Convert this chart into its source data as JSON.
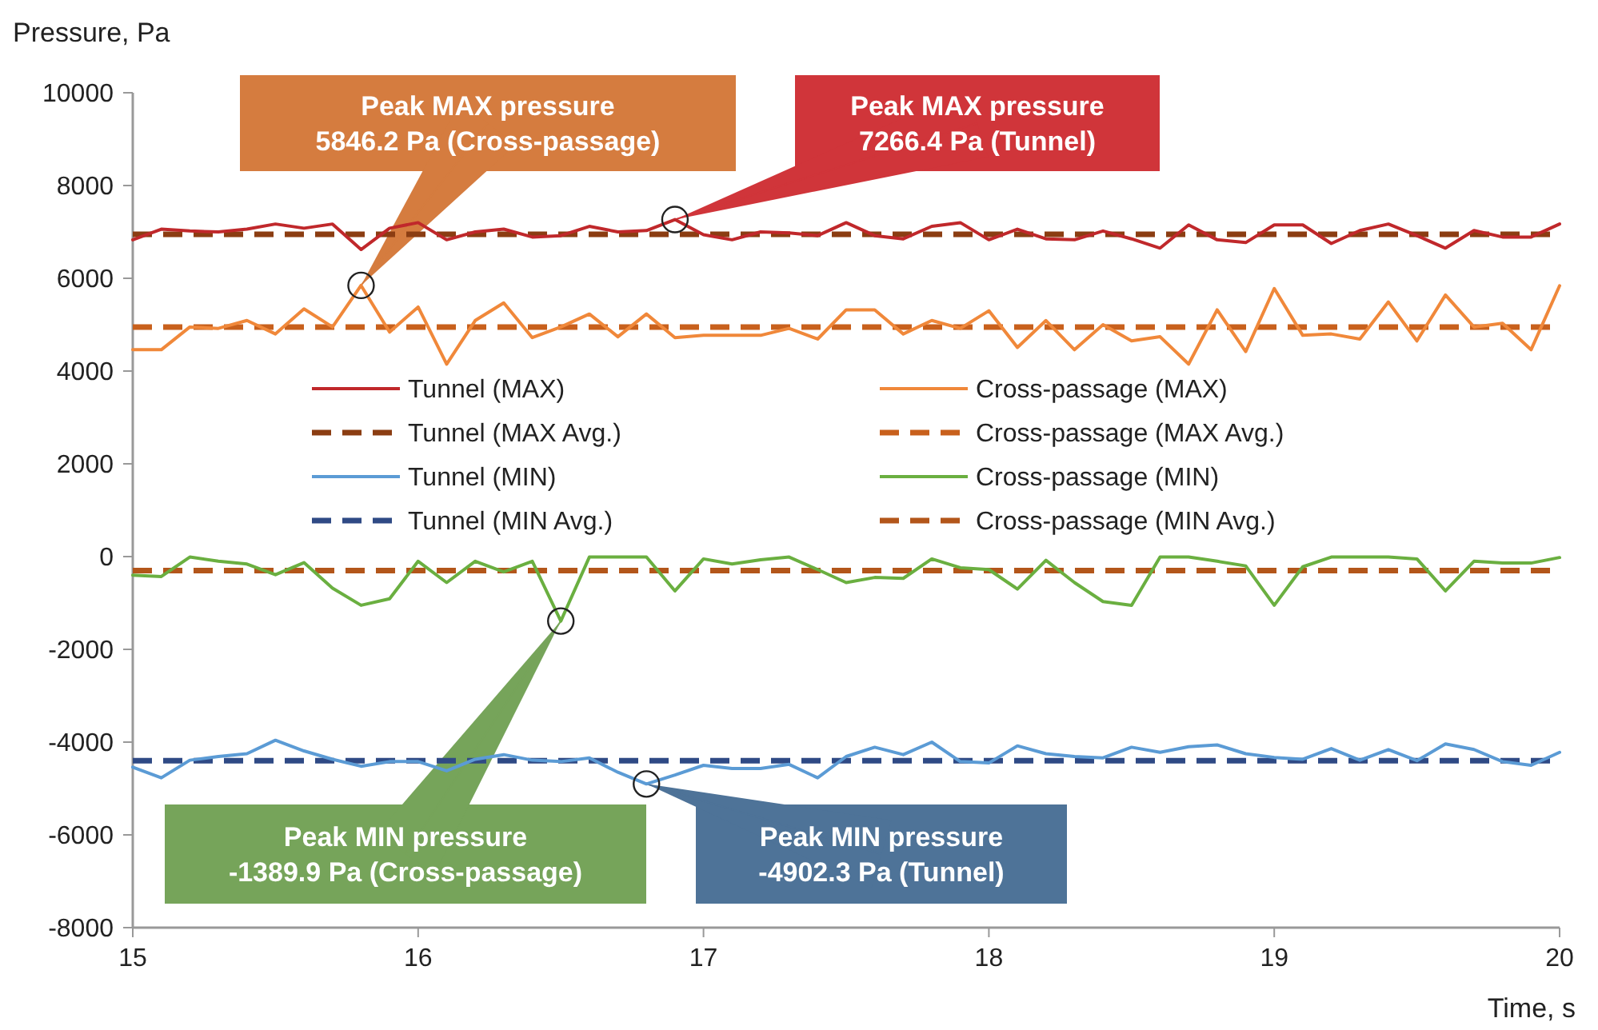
{
  "chart_data": {
    "type": "line",
    "xlabel": "Time, s",
    "ylabel": "Pressure, Pa",
    "x": [
      15,
      15.1,
      15.2,
      15.3,
      15.4,
      15.5,
      15.6,
      15.7,
      15.8,
      15.9,
      16,
      16.1,
      16.2,
      16.3,
      16.4,
      16.5,
      16.6,
      16.7,
      16.8,
      16.9,
      17,
      17.1,
      17.2,
      17.3,
      17.4,
      17.5,
      17.6,
      17.7,
      17.8,
      17.9,
      18,
      18.1,
      18.2,
      18.3,
      18.4,
      18.5,
      18.6,
      18.7,
      18.8,
      18.9,
      19,
      19.1,
      19.2,
      19.3,
      19.4,
      19.5,
      19.6,
      19.7,
      19.8,
      19.9,
      20
    ],
    "xlim": [
      15,
      20
    ],
    "xticks": [
      15,
      16,
      17,
      18,
      19,
      20
    ],
    "ylim": [
      -8000,
      10000
    ],
    "yticks": [
      -8000,
      -6000,
      -4000,
      -2000,
      0,
      2000,
      4000,
      6000,
      8000,
      10000
    ],
    "grid": false,
    "legend": "center",
    "marker": "none",
    "series": [
      {
        "name": "Tunnel (MAX)",
        "color": "#c0282b",
        "values": [
          6830,
          7060,
          7020,
          7000,
          7060,
          7170,
          7080,
          7170,
          6620,
          7080,
          7200,
          6830,
          7000,
          7060,
          6890,
          6920,
          7120,
          7000,
          7030,
          7266.4,
          6940,
          6830,
          7000,
          6980,
          6920,
          7200,
          6920,
          6850,
          7120,
          7200,
          6830,
          7060,
          6850,
          6830,
          7020,
          6850,
          6650,
          7150,
          6830,
          6770,
          7150,
          7150,
          6750,
          7030,
          7170,
          6920,
          6650,
          7030,
          6890,
          6890,
          7170
        ]
      },
      {
        "name": "Cross-passage (MAX)",
        "color": "#f0883a",
        "values": [
          4460,
          4460,
          4950,
          4920,
          5090,
          4800,
          5340,
          4950,
          5846.2,
          4840,
          5380,
          4150,
          5090,
          5470,
          4720,
          4950,
          5230,
          4740,
          5230,
          4720,
          4770,
          4770,
          4770,
          4920,
          4690,
          5320,
          5320,
          4800,
          5090,
          4920,
          5300,
          4510,
          5090,
          4460,
          5000,
          4650,
          4740,
          4150,
          5320,
          4420,
          5780,
          4770,
          4800,
          4690,
          5490,
          4650,
          5640,
          4950,
          5030,
          4460,
          5840
        ]
      },
      {
        "name": "Tunnel (MIN)",
        "color": "#5b9bd5",
        "values": [
          -4540,
          -4770,
          -4390,
          -4310,
          -4250,
          -3960,
          -4190,
          -4370,
          -4520,
          -4420,
          -4420,
          -4620,
          -4370,
          -4270,
          -4390,
          -4420,
          -4340,
          -4650,
          -4902.3,
          -4710,
          -4500,
          -4570,
          -4570,
          -4480,
          -4770,
          -4310,
          -4110,
          -4270,
          -4000,
          -4420,
          -4450,
          -4080,
          -4250,
          -4310,
          -4340,
          -4110,
          -4220,
          -4100,
          -4060,
          -4250,
          -4330,
          -4370,
          -4140,
          -4390,
          -4160,
          -4400,
          -4040,
          -4160,
          -4420,
          -4500,
          -4220
        ]
      },
      {
        "name": "Cross-passage (MIN)",
        "color": "#6aaf40",
        "values": [
          -400,
          -430,
          -10,
          -100,
          -160,
          -390,
          -130,
          -680,
          -1050,
          -910,
          -100,
          -560,
          -100,
          -330,
          -100,
          -1389.9,
          -10,
          -10,
          -10,
          -740,
          -50,
          -160,
          -70,
          -10,
          -280,
          -560,
          -450,
          -470,
          -50,
          -240,
          -280,
          -700,
          -80,
          -560,
          -970,
          -1050,
          -10,
          -10,
          -100,
          -200,
          -1050,
          -220,
          -10,
          -10,
          -10,
          -50,
          -740,
          -100,
          -140,
          -140,
          -20
        ]
      }
    ],
    "ref_lines": [
      {
        "axis": "y",
        "value": 6950,
        "label": "Tunnel (MAX Avg.)",
        "color": "#8b3d12",
        "line_style": "dashed"
      },
      {
        "axis": "y",
        "value": 4950,
        "label": "Cross-passage (MAX Avg.)",
        "color": "#c8601c",
        "line_style": "dashed"
      },
      {
        "axis": "y",
        "value": -4400,
        "label": "Tunnel (MIN Avg.)",
        "color": "#2f4a85",
        "line_style": "dashed"
      },
      {
        "axis": "y",
        "value": -300,
        "label": "Cross-passage (MIN Avg.)",
        "color": "#b3561a",
        "line_style": "dashed"
      }
    ],
    "annotations": [
      {
        "text": "Peak MAX pressure\n5846.2 Pa (Cross-passage)",
        "x": 15.8,
        "y": 5846.2
      },
      {
        "text": "Peak MAX pressure\n7266.4 Pa (Tunnel)",
        "x": 16.9,
        "y": 7266.4
      },
      {
        "text": "Peak MIN pressure\n-1389.9 Pa (Cross-passage)",
        "x": 16.5,
        "y": -1389.9
      },
      {
        "text": "Peak MIN pressure\n-4902.3 Pa (Tunnel)",
        "x": 16.8,
        "y": -4902.3
      }
    ]
  }
}
